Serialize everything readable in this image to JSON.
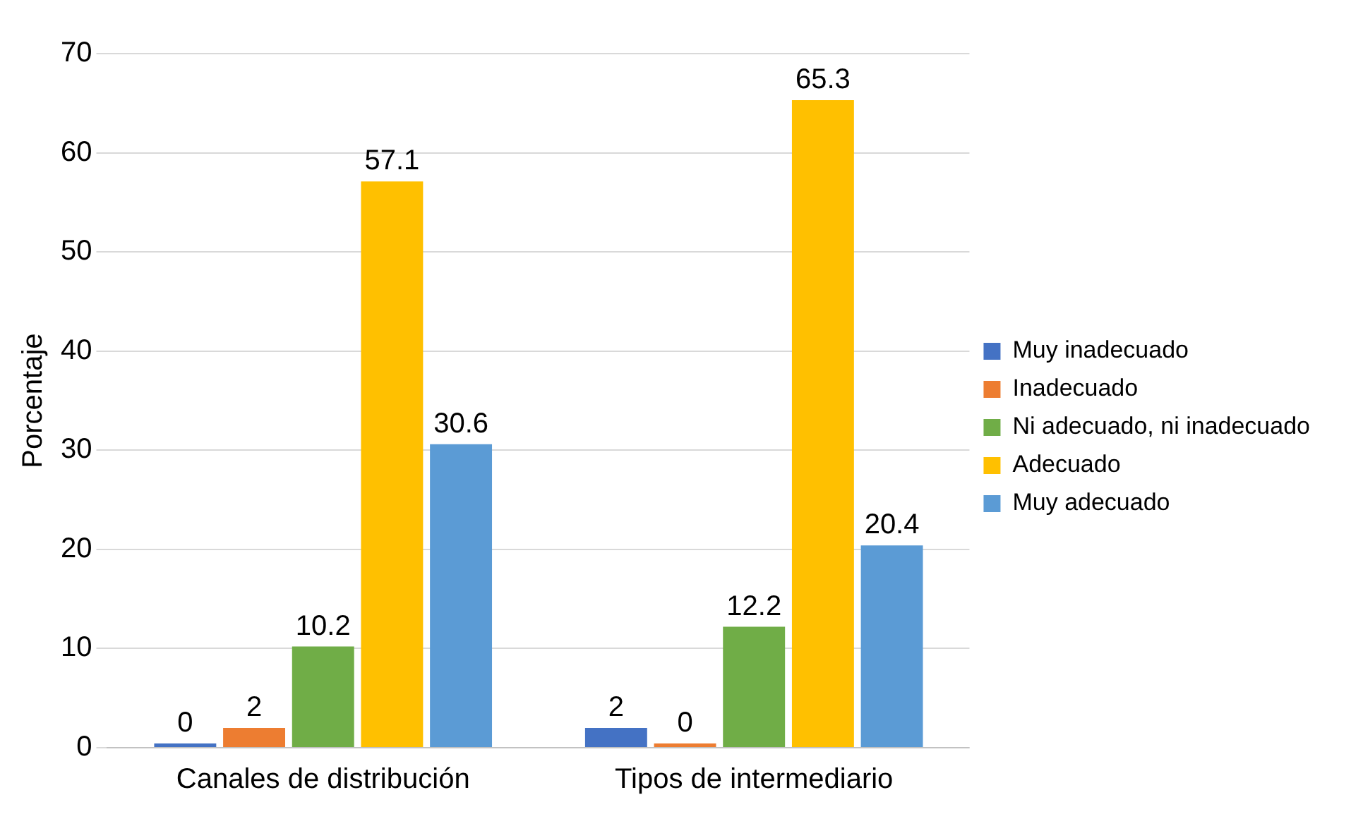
{
  "chart_data": {
    "type": "bar",
    "ylabel": "Porcentaje",
    "categories": [
      "Canales de distribución",
      "Tipos de intermediario"
    ],
    "series": [
      {
        "name": "Muy inadecuado",
        "color": "#4472c4",
        "values": [
          0,
          2
        ]
      },
      {
        "name": "Inadecuado",
        "color": "#ed7d31",
        "values": [
          2,
          0
        ]
      },
      {
        "name": "Ni adecuado, ni inadecuado",
        "color": "#70ad47",
        "values": [
          10.2,
          12.2
        ]
      },
      {
        "name": "Adecuado",
        "color": "#ffc000",
        "values": [
          57.1,
          65.3
        ]
      },
      {
        "name": "Muy adecuado",
        "color": "#5b9bd5",
        "values": [
          30.6,
          20.4
        ]
      }
    ],
    "ylim": [
      0,
      70
    ],
    "yticks": [
      0,
      10,
      20,
      30,
      40,
      50,
      60,
      70
    ],
    "grid": "y",
    "legend": "right",
    "data_labels": true
  }
}
